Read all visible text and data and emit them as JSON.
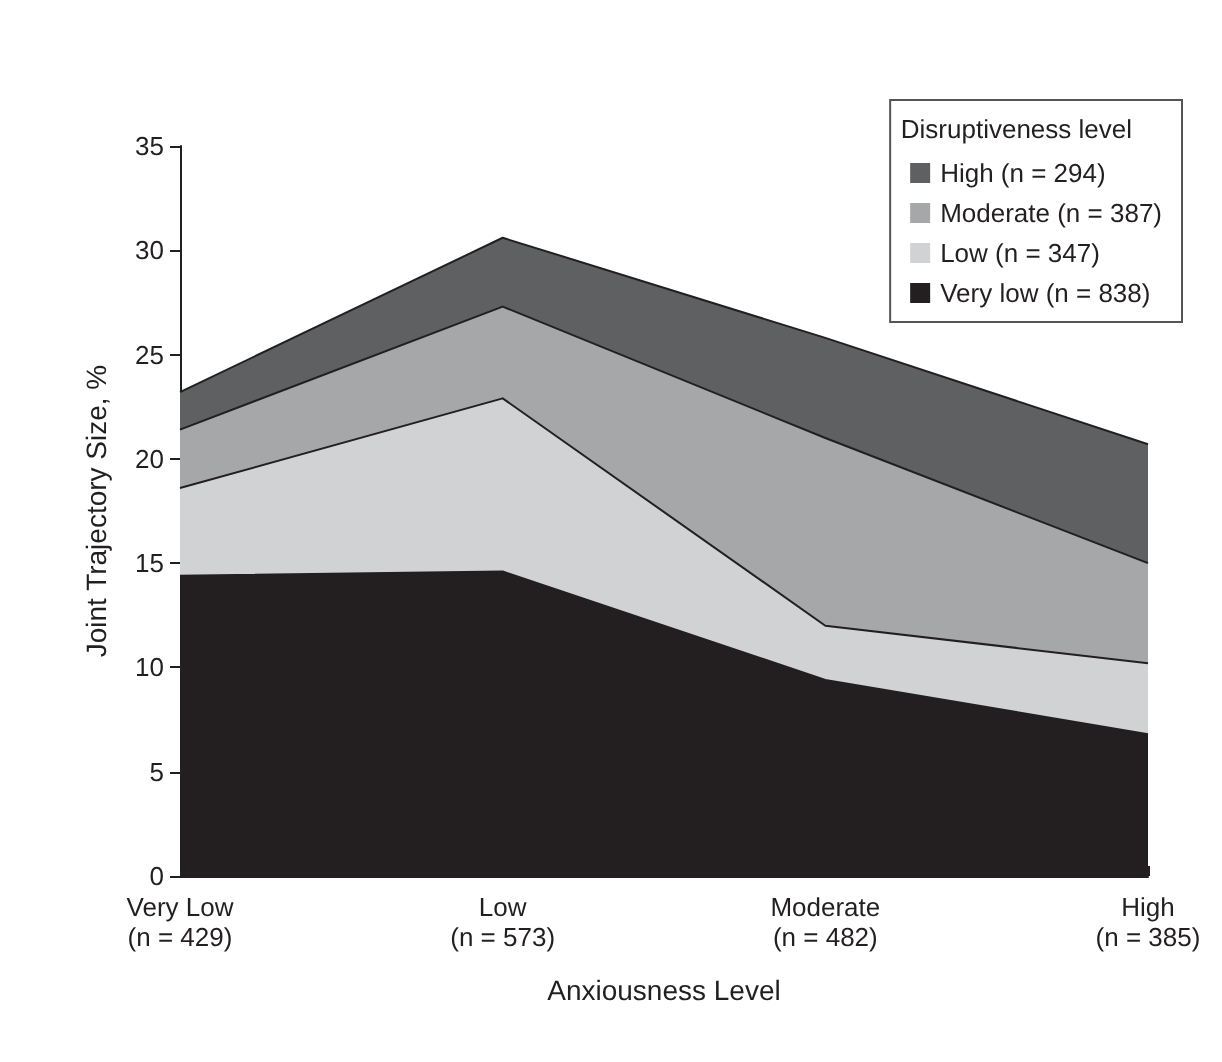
{
  "chart_data": {
    "type": "area",
    "stacked": true,
    "xlabel": "Anxiousness Level",
    "ylabel": "Joint Trajectory Size, %",
    "legend_title": "Disruptiveness level",
    "legend": "top right",
    "grid": false,
    "categories": [
      "Very Low\n(n = 429)",
      "Low\n(n = 573)",
      "Moderate\n(n = 482)",
      "High\n(n = 385)"
    ],
    "ylim": [
      0,
      35
    ],
    "yticks": [
      0,
      5,
      10,
      15,
      20,
      25,
      30,
      35
    ],
    "series": [
      {
        "name": "Very low (n = 838)",
        "color": "#231f20",
        "values": [
          14.4,
          14.6,
          9.4,
          6.8
        ]
      },
      {
        "name": "Low (n = 347)",
        "color": "#d1d2d4",
        "values": [
          4.2,
          8.3,
          2.6,
          3.4
        ]
      },
      {
        "name": "Moderate (n = 387)",
        "color": "#a6a7a9",
        "values": [
          2.8,
          4.4,
          9.0,
          4.8
        ]
      },
      {
        "name": "High (n = 294)",
        "color": "#5f6062",
        "values": [
          1.8,
          3.3,
          4.8,
          5.7
        ]
      }
    ]
  }
}
